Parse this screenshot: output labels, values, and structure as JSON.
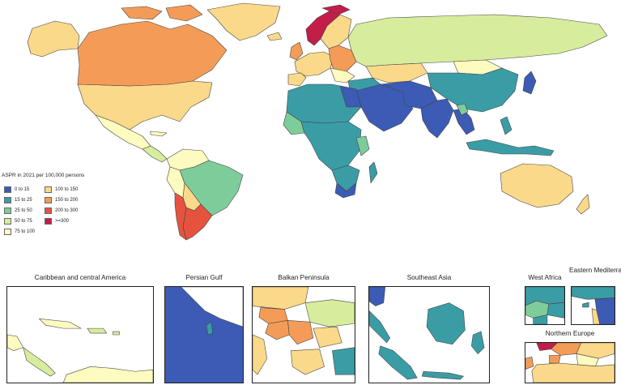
{
  "legend": {
    "title": "ASPR in 2021 per 100,000 persons",
    "items": [
      {
        "label": "0 to 15",
        "color": "#3b5bb5"
      },
      {
        "label": "15 to 25",
        "color": "#3a9da6"
      },
      {
        "label": "25 to 50",
        "color": "#7fcc9b"
      },
      {
        "label": "50 to 75",
        "color": "#d8ec9e"
      },
      {
        "label": "75 to 100",
        "color": "#fdfbc0"
      },
      {
        "label": "100 to 150",
        "color": "#fbd98a"
      },
      {
        "label": "150 to 200",
        "color": "#f49c57"
      },
      {
        "label": "200 to 300",
        "color": "#e5533f"
      },
      {
        "label": ">=300",
        "color": "#c21e49"
      }
    ]
  },
  "insets": [
    {
      "title": "Caribbean and central America"
    },
    {
      "title": "Persian Gulf"
    },
    {
      "title": "Balkan Peninsula"
    },
    {
      "title": "Southeast Asia"
    },
    {
      "title": "West Africa"
    },
    {
      "title": "Eastern Mediterranean"
    },
    {
      "title": "Northern Europe"
    }
  ]
}
